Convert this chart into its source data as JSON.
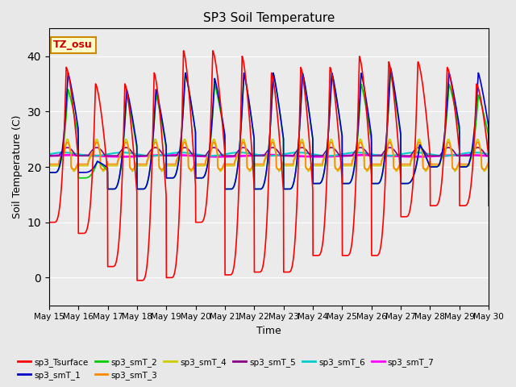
{
  "title": "SP3 Soil Temperature",
  "ylabel": "Soil Temperature (C)",
  "xlabel": "Time",
  "ylim": [
    -5,
    45
  ],
  "annotation": "TZ_osu",
  "x_tick_labels": [
    "May 15",
    "May 16",
    "May 17",
    "May 18",
    "May 19",
    "May 20",
    "May 21",
    "May 22",
    "May 23",
    "May 24",
    "May 25",
    "May 26",
    "May 27",
    "May 28",
    "May 29",
    "May 30"
  ],
  "series_order": [
    "sp3_Tsurface",
    "sp3_smT_1",
    "sp3_smT_2",
    "sp3_smT_3",
    "sp3_smT_4",
    "sp3_smT_5",
    "sp3_smT_6",
    "sp3_smT_7"
  ],
  "series": {
    "sp3_Tsurface": {
      "color": "#FF0000",
      "lw": 1.2
    },
    "sp3_smT_1": {
      "color": "#0000CC",
      "lw": 1.2
    },
    "sp3_smT_2": {
      "color": "#00CC00",
      "lw": 1.2
    },
    "sp3_smT_3": {
      "color": "#FF8800",
      "lw": 1.2
    },
    "sp3_smT_4": {
      "color": "#CCCC00",
      "lw": 1.2
    },
    "sp3_smT_5": {
      "color": "#880088",
      "lw": 1.2
    },
    "sp3_smT_6": {
      "color": "#00CCCC",
      "lw": 1.5
    },
    "sp3_smT_7": {
      "color": "#FF00FF",
      "lw": 2.0
    }
  },
  "bg_color": "#E8E8E8",
  "plot_bg_color": "#EBEBEB",
  "grid_color": "#FFFFFF",
  "figsize": [
    6.4,
    4.8
  ],
  "dpi": 100,
  "n_days": 15,
  "pts_per_day": 144,
  "base_temp": 22.0,
  "surface_peak_temps": [
    38,
    35,
    35,
    37,
    41,
    41,
    40,
    37,
    38,
    38,
    40,
    39,
    39,
    38,
    35
  ],
  "surface_trough_temps": [
    10,
    8,
    2,
    -0.5,
    0,
    10,
    0.5,
    1,
    1,
    4,
    4,
    4,
    11,
    13,
    13
  ],
  "smT1_peaks": [
    37,
    21,
    34,
    34,
    37,
    36,
    37,
    37,
    37,
    37,
    37,
    38,
    24,
    37,
    37
  ],
  "smT2_peaks": [
    34,
    21,
    33,
    33,
    37,
    35,
    37,
    37,
    37,
    37,
    35,
    37,
    24,
    35,
    33
  ],
  "smT1_troughs": [
    19,
    19,
    16,
    16,
    18,
    18,
    16,
    16,
    16,
    17,
    17,
    17,
    17,
    20,
    20
  ],
  "smT2_troughs": [
    19,
    18,
    16,
    16,
    18,
    18,
    16,
    16,
    16,
    17,
    17,
    17,
    17,
    20,
    20
  ]
}
